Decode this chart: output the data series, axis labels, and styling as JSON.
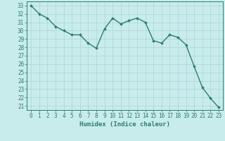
{
  "x": [
    0,
    1,
    2,
    3,
    4,
    5,
    6,
    7,
    8,
    9,
    10,
    11,
    12,
    13,
    14,
    15,
    16,
    17,
    18,
    19,
    20,
    21,
    22,
    23
  ],
  "y": [
    33,
    32,
    31.5,
    30.5,
    30,
    29.5,
    29.5,
    28.5,
    27.9,
    30.2,
    31.5,
    30.8,
    31.2,
    31.5,
    31.0,
    28.8,
    28.5,
    29.5,
    29.2,
    28.3,
    25.7,
    23.2,
    21.9,
    20.8
  ],
  "line_color": "#2d7d6e",
  "marker": "D",
  "marker_size": 2,
  "bg_color": "#c8ecec",
  "grid_color": "#aad4d4",
  "xlabel": "Humidex (Indice chaleur)",
  "xlim": [
    -0.5,
    23.5
  ],
  "ylim": [
    20.5,
    33.5
  ],
  "yticks": [
    21,
    22,
    23,
    24,
    25,
    26,
    27,
    28,
    29,
    30,
    31,
    32,
    33
  ],
  "xticks": [
    0,
    1,
    2,
    3,
    4,
    5,
    6,
    7,
    8,
    9,
    10,
    11,
    12,
    13,
    14,
    15,
    16,
    17,
    18,
    19,
    20,
    21,
    22,
    23
  ],
  "tick_color": "#2d7d6e",
  "tick_fontsize": 5.5,
  "xlabel_fontsize": 6.5,
  "line_width": 1.0
}
